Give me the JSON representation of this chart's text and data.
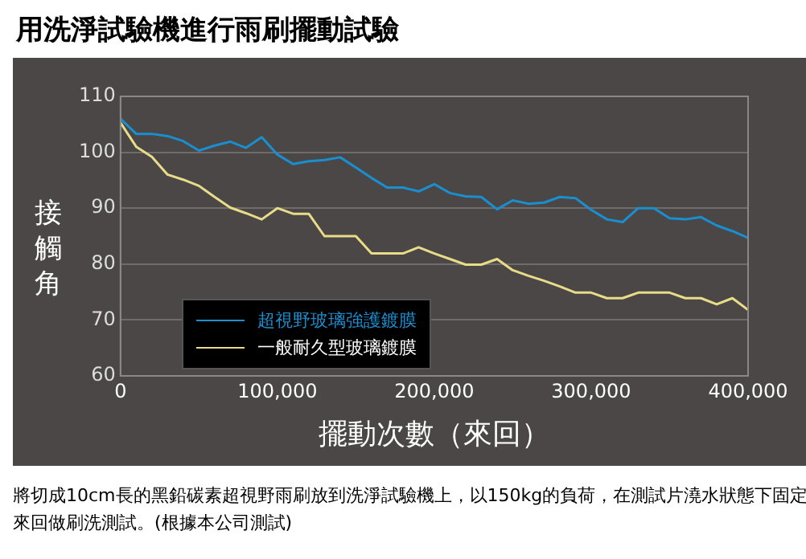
{
  "chart_data": {
    "type": "line",
    "title": "用洗淨試驗機進行雨刷擺動試驗",
    "xlabel": "擺動次數（來回）",
    "ylabel": "接觸角",
    "annotations": [
      "將切成10cm長的黑鉛碳素超視野雨刷放到洗淨試驗機上，以150kg的負荷，在測試片澆水狀態下固定來回做刷洗測試。(根據本公司測試)"
    ],
    "x": [
      0,
      10000,
      20000,
      30000,
      40000,
      50000,
      60000,
      70000,
      80000,
      90000,
      100000,
      110000,
      120000,
      130000,
      140000,
      150000,
      160000,
      170000,
      180000,
      190000,
      200000,
      210000,
      220000,
      230000,
      240000,
      250000,
      260000,
      270000,
      280000,
      290000,
      300000,
      310000,
      320000,
      330000,
      340000,
      350000,
      360000,
      370000,
      380000,
      390000,
      400000
    ],
    "series": [
      {
        "name": "超視野玻璃強護鍍膜",
        "color": "#1a8fd0",
        "values": [
          106,
          103.3,
          103.3,
          102.9,
          102,
          100.3,
          101.2,
          101.9,
          100.8,
          102.7,
          99.6,
          97.9,
          98.4,
          98.6,
          99.1,
          97.3,
          95.4,
          93.7,
          93.7,
          93,
          94.3,
          92.7,
          92.1,
          92,
          89.8,
          91.4,
          90.8,
          91,
          92,
          91.8,
          89.7,
          88,
          87.5,
          90,
          90,
          88.2,
          88,
          88.4,
          86.9,
          85.9,
          84.7
        ]
      },
      {
        "name": "一般耐久型玻璃鍍膜",
        "color": "#e8dc88",
        "values": [
          105.3,
          101,
          99.2,
          96,
          95.1,
          94,
          92,
          90.1,
          89.1,
          88,
          90,
          89,
          89,
          85,
          85,
          85,
          81.9,
          81.9,
          81.9,
          83,
          81.9,
          80.9,
          79.9,
          79.9,
          80.9,
          78.9,
          77.9,
          77,
          76,
          74.9,
          74.9,
          73.9,
          73.9,
          74.9,
          74.9,
          74.9,
          73.9,
          73.9,
          72.8,
          73.9,
          71.8
        ]
      }
    ],
    "xlim": [
      0,
      400000
    ],
    "xticks": [
      0,
      {
        "value": 100000,
        "label": "100,000"
      },
      {
        "value": 200000,
        "label": "200,000"
      },
      {
        "value": 300000,
        "label": "300,000"
      },
      {
        "value": 400000,
        "label": "400,000"
      }
    ],
    "ylim": [
      60,
      110
    ],
    "yticks": [
      60,
      70,
      80,
      90,
      100,
      110
    ],
    "grid": "y",
    "legend": "bottom left",
    "marker": "none",
    "line_style": "solid"
  }
}
